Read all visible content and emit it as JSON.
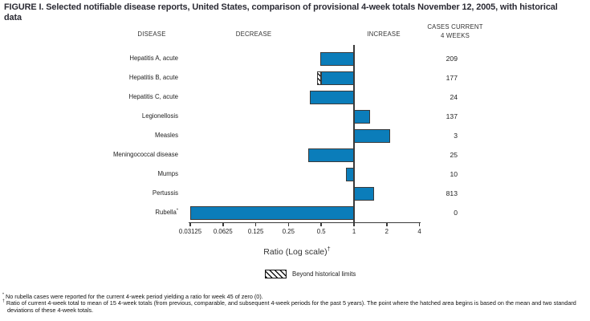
{
  "figure": {
    "title": "FIGURE I. Selected notifiable disease reports, United States, comparison of provisional 4-week totals November 12, 2005, with historical data",
    "column_headers": {
      "disease": "DISEASE",
      "decrease": "DECREASE",
      "increase": "INCREASE",
      "cases_line1": "CASES CURRENT",
      "cases_line2": "4 WEEKS"
    },
    "footnotes": [
      {
        "marker": "*",
        "text": "No rubella cases were reported for the current 4-week period yielding a ratio for week 45 of zero (0)."
      },
      {
        "marker": "†",
        "text": "Ratio of current 4-week total to mean of 15 4-week totals (from previous, comparable, and subsequent 4-week periods for the past 5 years). The point where the hatched area begins is based on the mean and two standard deviations of these 4-week totals."
      }
    ],
    "colors": {
      "bar_fill": "#0b7dba",
      "bar_border": "#3a3a3a",
      "axis": "#3a3a3a",
      "title": "#2a2a33"
    }
  },
  "chart_data": {
    "type": "bar",
    "orientation": "horizontal",
    "scale": "log2",
    "title": "Selected notifiable disease reports, United States, comparison of provisional 4-week totals November 12, 2005, with historical data",
    "xlabel": "Ratio (Log scale)",
    "xlabel_sup": "†",
    "x_ticks": [
      "0.03125",
      "0.0625",
      "0.125",
      "0.25",
      "0.5",
      "1",
      "2",
      "4"
    ],
    "x_range": [
      0.03125,
      4
    ],
    "baseline": 1,
    "grid": false,
    "legend": {
      "swatch": "diagonal-hatch",
      "label": "Beyond historical limits",
      "position": "bottom"
    },
    "rows": [
      {
        "disease": "Hepatitis A, acute",
        "ratio": 0.49,
        "cases": "209"
      },
      {
        "disease": "Hepatitis B, acute",
        "ratio": 0.46,
        "hatch_from": 0.46,
        "hatch_to": 0.5,
        "cases": "177"
      },
      {
        "disease": "Hepatitis C, acute",
        "ratio": 0.39,
        "cases": "24"
      },
      {
        "disease": "Legionellosis",
        "ratio": 1.41,
        "cases": "137"
      },
      {
        "disease": "Measles",
        "ratio": 2.14,
        "cases": "3"
      },
      {
        "disease": "Meningococcal disease",
        "ratio": 0.38,
        "cases": "25"
      },
      {
        "disease": "Mumps",
        "ratio": 0.85,
        "cases": "10"
      },
      {
        "disease": "Pertussis",
        "ratio": 1.54,
        "cases": "813"
      },
      {
        "disease": "Rubella",
        "sup": "*",
        "ratio": 0,
        "cases": "0"
      }
    ]
  }
}
